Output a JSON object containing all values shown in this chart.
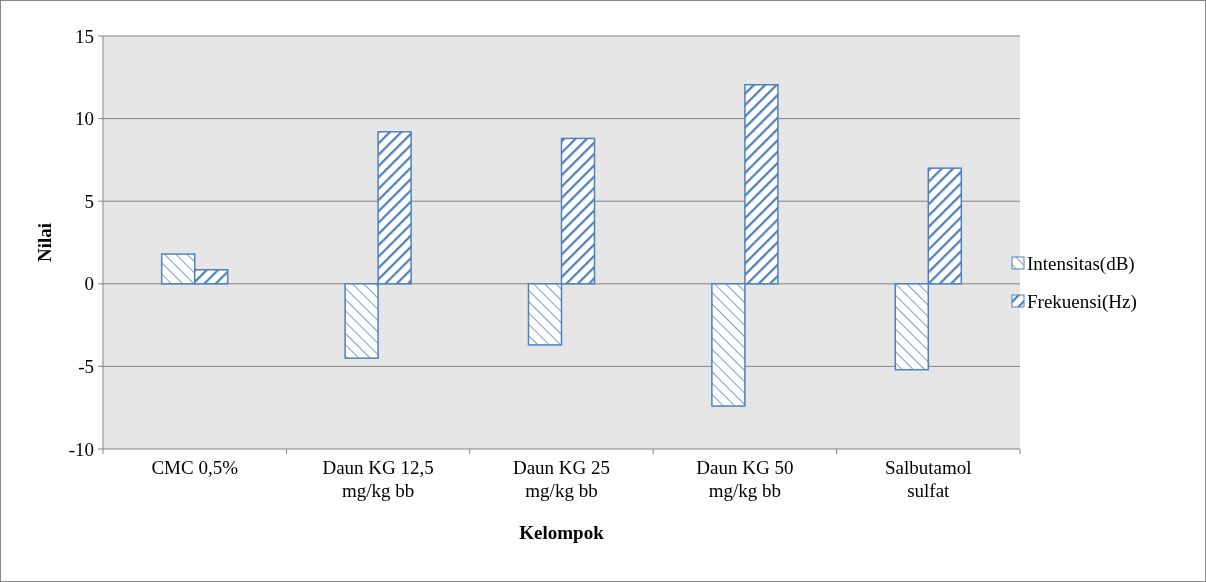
{
  "chart_data": {
    "type": "bar",
    "xlabel": "Kelompok",
    "ylabel": "Nilai",
    "categories": [
      "CMC 0,5%",
      "Daun KG 12,5 mg/kg bb",
      "Daun KG 25 mg/kg bb",
      "Daun KG 50 mg/kg bb",
      "Salbutamol sulfat"
    ],
    "series": [
      {
        "name": "Intensitas(dB)",
        "color": "#4f81bd",
        "values": [
          1.8,
          -4.5,
          -3.7,
          -7.4,
          -5.2
        ]
      },
      {
        "name": "Frekuensi(Hz)",
        "color": "#4f81bd",
        "values": [
          0.85,
          9.2,
          8.8,
          12.05,
          7
        ]
      }
    ],
    "ylim": [
      -10,
      15
    ],
    "yticks": [
      -10,
      -5,
      0,
      5,
      10,
      15
    ],
    "grid": "y",
    "legend": "right"
  }
}
